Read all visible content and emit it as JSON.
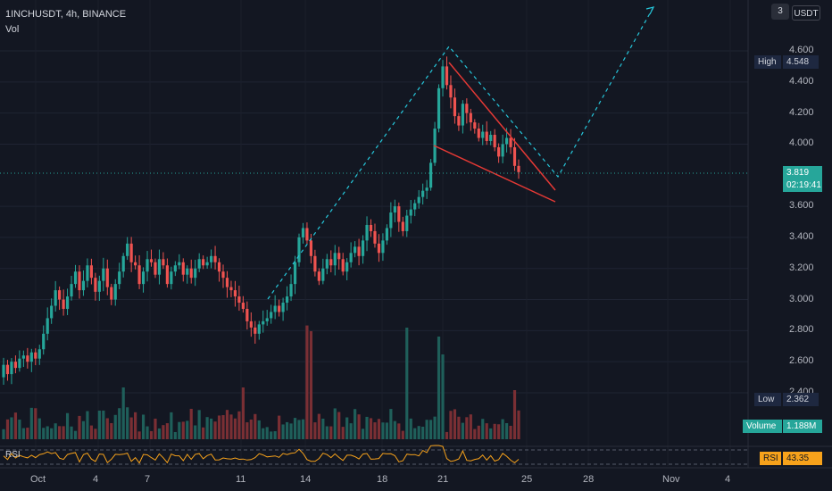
{
  "header": {
    "symbol_line": "1INCHUSDT, 4h, BINANCE",
    "indicator": "Vol",
    "settings_label": "3",
    "currency_button": "USDT"
  },
  "price_axis": {
    "ticks": [
      "4.600",
      "4.400",
      "4.200",
      "4.000",
      "3.600",
      "3.400",
      "3.200",
      "3.000",
      "2.800",
      "2.600",
      "2.400"
    ]
  },
  "tags": {
    "high_label": "High",
    "high_value": "4.548",
    "current_price": "3.819",
    "countdown": "02:19:41",
    "low_label": "Low",
    "low_value": "2.362",
    "volume_label": "Volume",
    "volume_value": "1.188M",
    "rsi_label": "RSI",
    "rsi_value": "43.35"
  },
  "rsi_pane": {
    "label": "RSI"
  },
  "time_axis": {
    "ticks": [
      "Oct",
      "4",
      "7",
      "11",
      "14",
      "18",
      "21",
      "25",
      "28",
      "Nov",
      "4"
    ]
  },
  "colors": {
    "background": "#131722",
    "up": "#26a69a",
    "down": "#ef5350",
    "pattern": "#e53935",
    "projection": "#26c6da",
    "rsi_line": "#f7a21b"
  },
  "chart_data": {
    "type": "candlestick",
    "ylim": [
      2.36,
      4.7
    ],
    "x": [
      "Oct",
      "4",
      "7",
      "11",
      "14",
      "18",
      "21",
      "25",
      "28",
      "Nov",
      "4"
    ],
    "close_series": [
      2.58,
      2.52,
      2.6,
      2.56,
      2.62,
      2.64,
      2.6,
      2.66,
      2.62,
      2.68,
      2.78,
      2.88,
      2.96,
      3.06,
      3.0,
      2.94,
      3.02,
      3.1,
      3.18,
      3.06,
      3.12,
      3.22,
      3.14,
      3.05,
      3.12,
      3.2,
      3.08,
      3.0,
      3.1,
      3.18,
      3.28,
      3.36,
      3.24,
      3.22,
      3.1,
      3.18,
      3.26,
      3.24,
      3.16,
      3.26,
      3.22,
      3.1,
      3.18,
      3.22,
      3.24,
      3.16,
      3.2,
      3.14,
      3.2,
      3.26,
      3.22,
      3.24,
      3.28,
      3.24,
      3.18,
      3.14,
      3.08,
      3.06,
      3.02,
      2.98,
      2.94,
      2.86,
      2.82,
      2.78,
      2.84,
      2.86,
      2.88,
      2.92,
      2.96,
      2.92,
      2.98,
      3.02,
      3.1,
      3.24,
      3.4,
      3.46,
      3.38,
      3.28,
      3.18,
      3.12,
      3.2,
      3.26,
      3.22,
      3.3,
      3.26,
      3.18,
      3.24,
      3.3,
      3.34,
      3.28,
      3.38,
      3.48,
      3.44,
      3.36,
      3.3,
      3.38,
      3.46,
      3.56,
      3.6,
      3.5,
      3.44,
      3.54,
      3.58,
      3.62,
      3.66,
      3.7,
      3.72,
      3.88,
      4.1,
      4.36,
      4.5,
      4.38,
      4.3,
      4.18,
      4.12,
      4.26,
      4.2,
      4.14,
      4.1,
      4.04,
      4.08,
      4.02,
      4.06,
      3.98,
      3.92,
      4.0,
      4.04,
      3.98,
      3.86,
      3.82
    ],
    "rsi_value": 43.35
  }
}
